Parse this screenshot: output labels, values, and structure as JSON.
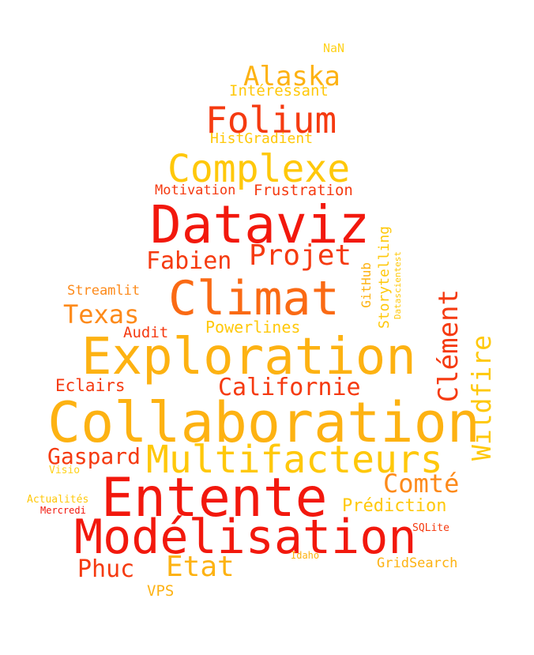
{
  "colors": {
    "red": "#f2180d",
    "red_orange": "#f53a10",
    "orange": "#fa6a14",
    "orange_light": "#fd8a1a",
    "amber": "#fdb212",
    "gold": "#ffc80a",
    "yellow": "#ffd21a"
  },
  "words": {
    "nan": "NaN",
    "alaska": "Alaska",
    "interessant": "Intéressant",
    "folium": "Folium",
    "histgradient": "HistGradient",
    "complexe": "Complexe",
    "motivation": "Motivation",
    "frustration": "Frustration",
    "dataviz": "Dataviz",
    "github": "GitHub",
    "storytelling": "Storytelling",
    "datascientest": "Datascientest",
    "fabien": "Fabien",
    "projet": "Projet",
    "streamlit": "Streamlit",
    "climat": "Climat",
    "texas": "Texas",
    "clement": "Clément",
    "audit": "Audit",
    "powerlines": "Powerlines",
    "wildfire": "Wildfire",
    "exploration": "Exploration",
    "eclairs": "Eclairs",
    "californie": "Californie",
    "collaboration": "Collaboration",
    "gaspard": "Gaspard",
    "multifacteurs": "Multifacteurs",
    "visio": "Visio",
    "comte": "Comté",
    "entente": "Entente",
    "actualites": "Actualités",
    "mercredi": "Mercredi",
    "prediction": "Prédiction",
    "modelisation": "Modélisation",
    "sqlite": "SQLite",
    "idaho": "Idaho",
    "phuc": "Phuc",
    "etat": "Etat",
    "gridsearch": "GridSearch",
    "vps": "VPS"
  }
}
